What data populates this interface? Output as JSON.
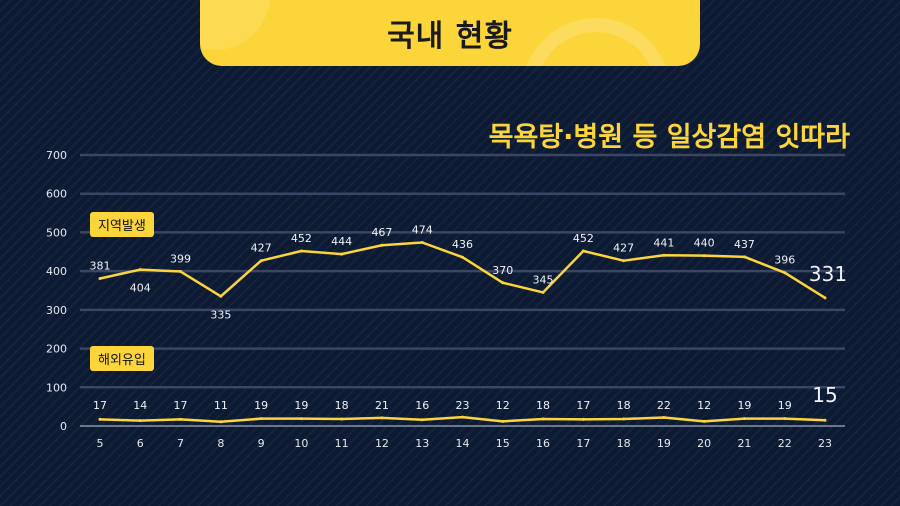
{
  "header": {
    "title": "국내 현황"
  },
  "headline": "목욕탕·병원 등 일상감염 잇따라",
  "chart_data": {
    "type": "line",
    "x": [
      "5",
      "6",
      "7",
      "8",
      "9",
      "10",
      "11",
      "12",
      "13",
      "14",
      "15",
      "16",
      "17",
      "18",
      "19",
      "20",
      "21",
      "22",
      "23"
    ],
    "ylim": [
      0,
      700
    ],
    "yticks": [
      "0",
      "100",
      "200",
      "300",
      "400",
      "500",
      "600",
      "700"
    ],
    "grid": true,
    "series": [
      {
        "name": "지역발생",
        "values": [
          381,
          404,
          399,
          335,
          427,
          452,
          444,
          467,
          474,
          436,
          370,
          345,
          452,
          427,
          441,
          440,
          437,
          396,
          331
        ]
      },
      {
        "name": "해외유입",
        "values": [
          17,
          14,
          17,
          11,
          19,
          19,
          18,
          21,
          16,
          23,
          12,
          18,
          17,
          18,
          22,
          12,
          19,
          19,
          15
        ]
      }
    ],
    "line_color": "#fcd53a",
    "background_color": "#0c1a33"
  }
}
